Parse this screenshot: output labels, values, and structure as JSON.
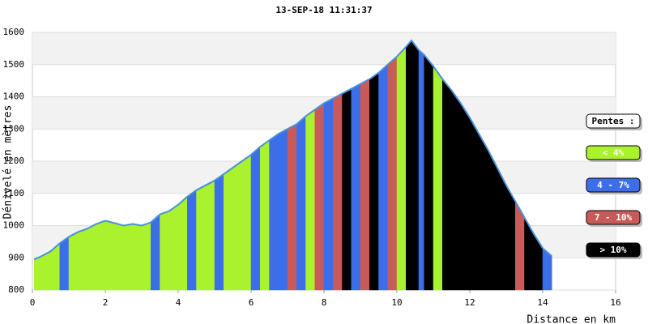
{
  "chart_data": {
    "type": "area",
    "title": "13-SEP-18 11:31:37",
    "x_label": "Distance en km",
    "y_label": "Dénivelé en mètres",
    "x": [
      0.05,
      0.25,
      0.5,
      0.75,
      1.0,
      1.25,
      1.5,
      1.75,
      2.0,
      2.25,
      2.5,
      2.75,
      3.0,
      3.25,
      3.5,
      3.75,
      4.0,
      4.25,
      4.5,
      4.75,
      5.0,
      5.25,
      5.5,
      5.75,
      6.0,
      6.25,
      6.5,
      6.75,
      7.0,
      7.25,
      7.5,
      7.75,
      8.0,
      8.25,
      8.5,
      8.75,
      9.0,
      9.25,
      9.5,
      9.75,
      10.0,
      10.25,
      10.4,
      10.6,
      10.75,
      11.0,
      11.25,
      11.5,
      11.75,
      12.0,
      12.25,
      12.5,
      12.75,
      13.0,
      13.25,
      13.5,
      13.75,
      14.0,
      14.25
    ],
    "values": [
      895,
      905,
      920,
      945,
      965,
      980,
      990,
      1005,
      1015,
      1008,
      1000,
      1005,
      1000,
      1010,
      1035,
      1045,
      1065,
      1090,
      1110,
      1125,
      1140,
      1160,
      1180,
      1200,
      1220,
      1245,
      1265,
      1285,
      1300,
      1315,
      1340,
      1360,
      1380,
      1395,
      1410,
      1425,
      1440,
      1455,
      1475,
      1500,
      1525,
      1555,
      1575,
      1545,
      1530,
      1495,
      1455,
      1420,
      1380,
      1335,
      1285,
      1235,
      1180,
      1125,
      1075,
      1025,
      975,
      930,
      905
    ],
    "line_color": "#4a90d9",
    "segment_colors": [
      "#aaf22e",
      "#aaf22e",
      "#aaf22e",
      "#3b6ee8",
      "#aaf22e",
      "#aaf22e",
      "#aaf22e",
      "#aaf22e",
      "#aaf22e",
      "#aaf22e",
      "#aaf22e",
      "#aaf22e",
      "#aaf22e",
      "#3b6ee8",
      "#aaf22e",
      "#aaf22e",
      "#aaf22e",
      "#3b6ee8",
      "#aaf22e",
      "#aaf22e",
      "#3b6ee8",
      "#aaf22e",
      "#aaf22e",
      "#aaf22e",
      "#3b6ee8",
      "#aaf22e",
      "#3b6ee8",
      "#3b6ee8",
      "#c85a5a",
      "#3b6ee8",
      "#aaf22e",
      "#c85a5a",
      "#3b6ee8",
      "#c85a5a",
      "#000000",
      "#3b6ee8",
      "#c85a5a",
      "#000000",
      "#3b6ee8",
      "#c85a5a",
      "#aaf22e",
      "#000000",
      "#000000",
      "#3b6ee8",
      "#000000",
      "#aaf22e",
      "#000000",
      "#000000",
      "#000000",
      "#000000",
      "#000000",
      "#000000",
      "#000000",
      "#000000",
      "#c85a5a",
      "#000000",
      "#000000",
      "#3b6ee8"
    ],
    "xlim": [
      0,
      16
    ],
    "xticks": [
      0,
      2,
      4,
      6,
      8,
      10,
      12,
      14,
      16
    ],
    "ylim": [
      800,
      1600
    ],
    "yticks": [
      800,
      900,
      1000,
      1100,
      1200,
      1300,
      1400,
      1500,
      1600
    ],
    "band_color": "#f2f2f2",
    "legend": {
      "title": "Pentes :",
      "position": "right",
      "items": [
        {
          "label": "< 4%",
          "color": "#aaf22e"
        },
        {
          "label": "4 - 7%",
          "color": "#3b6ee8"
        },
        {
          "label": "7 - 10%",
          "color": "#c85a5a"
        },
        {
          "label": "> 10%",
          "color": "#000000"
        }
      ]
    }
  }
}
